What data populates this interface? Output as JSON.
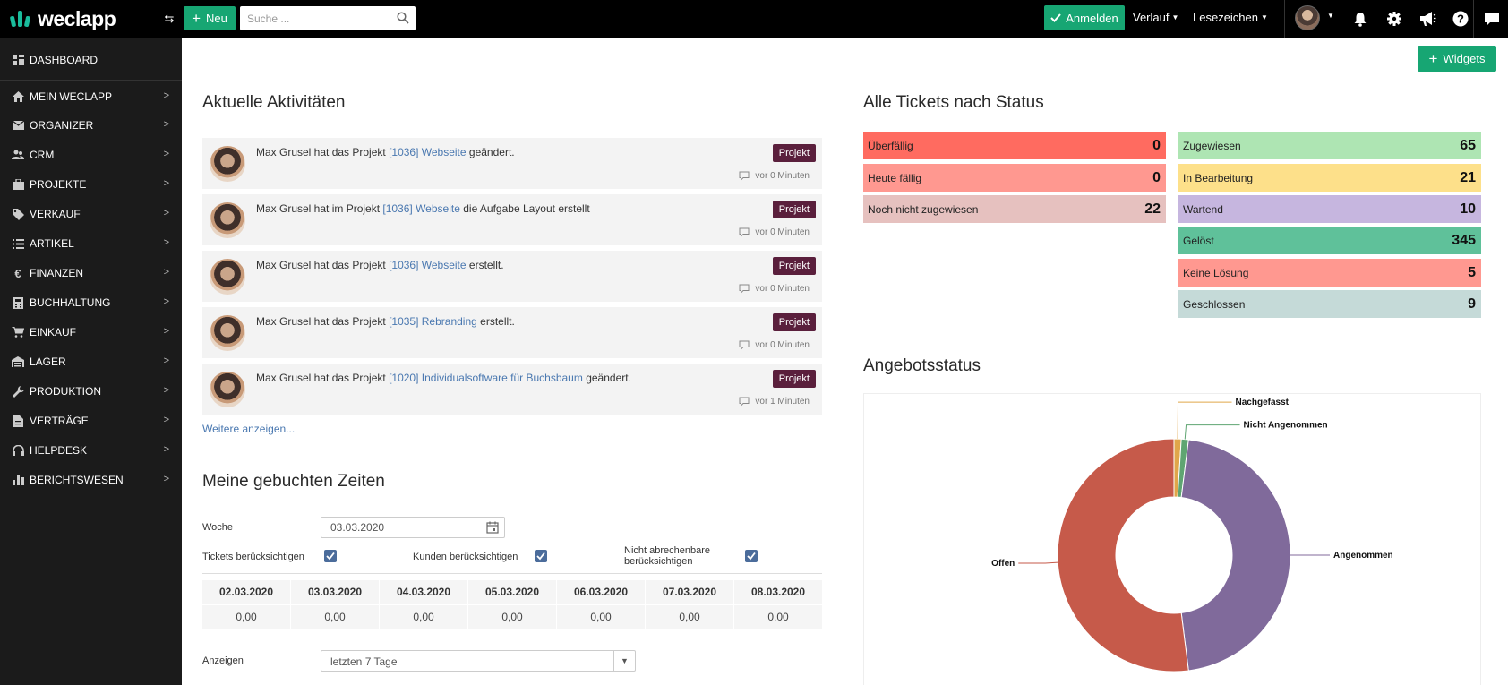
{
  "app": {
    "logo_text": "weclapp",
    "new_button": "Neu",
    "search_placeholder": "Suche ...",
    "login_button": "Anmelden",
    "history_menu": "Verlauf",
    "bookmarks_menu": "Lesezeichen",
    "collapse_symbol": "⇆",
    "accent_color": "#17a673"
  },
  "sidebar": {
    "dashboard": "DASHBOARD",
    "items": [
      {
        "label": "MEIN WECLAPP",
        "icon": "home-icon"
      },
      {
        "label": "ORGANIZER",
        "icon": "envelope-icon"
      },
      {
        "label": "CRM",
        "icon": "users-icon"
      },
      {
        "label": "PROJEKTE",
        "icon": "briefcase-icon"
      },
      {
        "label": "VERKAUF",
        "icon": "tag-icon"
      },
      {
        "label": "ARTIKEL",
        "icon": "list-icon"
      },
      {
        "label": "FINANZEN",
        "icon": "euro-icon"
      },
      {
        "label": "BUCHHALTUNG",
        "icon": "calculator-icon"
      },
      {
        "label": "EINKAUF",
        "icon": "cart-icon"
      },
      {
        "label": "LAGER",
        "icon": "warehouse-icon"
      },
      {
        "label": "PRODUKTION",
        "icon": "wrench-icon"
      },
      {
        "label": "VERTRÄGE",
        "icon": "document-icon"
      },
      {
        "label": "HELPDESK",
        "icon": "headset-icon"
      },
      {
        "label": "BERICHTSWESEN",
        "icon": "bar-chart-icon"
      }
    ]
  },
  "main": {
    "widgets_button": "Widgets",
    "activities": {
      "title": "Aktuelle Aktivitäten",
      "badge": "Projekt",
      "more_link": "Weitere anzeigen...",
      "items": [
        {
          "before": "Max Grusel hat das Projekt ",
          "link": "[1036] Webseite",
          "after": " geändert.",
          "time": "vor 0 Minuten"
        },
        {
          "before": "Max Grusel hat im Projekt ",
          "link": "[1036] Webseite",
          "after": " die Aufgabe Layout erstellt",
          "time": "vor 0 Minuten"
        },
        {
          "before": "Max Grusel hat das Projekt ",
          "link": "[1036] Webseite",
          "after": " erstellt.",
          "time": "vor 0 Minuten"
        },
        {
          "before": "Max Grusel hat das Projekt ",
          "link": "[1035] Rebranding",
          "after": " erstellt.",
          "time": "vor 0 Minuten"
        },
        {
          "before": "Max Grusel hat das Projekt ",
          "link": "[1020] Individualsoftware für Buchsbaum",
          "after": " geändert.",
          "time": "vor 1 Minuten"
        }
      ]
    },
    "times": {
      "title": "Meine gebuchten Zeiten",
      "week_label": "Woche",
      "week_value": "03.03.2020",
      "tickets_label": "Tickets berücksichtigen",
      "customers_label": "Kunden berücksichtigen",
      "nonbillable_label_1": "Nicht abrechenbare",
      "nonbillable_label_2": "berücksichtigen",
      "days": [
        {
          "date": "02.03.2020",
          "value": "0,00"
        },
        {
          "date": "03.03.2020",
          "value": "0,00"
        },
        {
          "date": "04.03.2020",
          "value": "0,00"
        },
        {
          "date": "05.03.2020",
          "value": "0,00"
        },
        {
          "date": "06.03.2020",
          "value": "0,00"
        },
        {
          "date": "07.03.2020",
          "value": "0,00"
        },
        {
          "date": "08.03.2020",
          "value": "0,00"
        }
      ],
      "show_label": "Anzeigen",
      "show_value": "letzten 7 Tage"
    },
    "tickets": {
      "title": "Alle Tickets nach Status",
      "left": [
        {
          "label": "Überfällig",
          "count": "0",
          "color": "#ff6b60"
        },
        {
          "label": "Heute fällig",
          "count": "0",
          "color": "#ff9890"
        },
        {
          "label": "Noch nicht zugewiesen",
          "count": "22",
          "color": "#e6c1bf"
        }
      ],
      "right": [
        {
          "label": "Zugewiesen",
          "count": "65",
          "color": "#aee5b3"
        },
        {
          "label": "In Bearbeitung",
          "count": "21",
          "color": "#fde08a"
        },
        {
          "label": "Wartend",
          "count": "10",
          "color": "#c6b6df"
        },
        {
          "label": "Gelöst",
          "count": "345",
          "color": "#5fc19a"
        },
        {
          "label": "Keine Lösung",
          "count": "5",
          "color": "#ff9890"
        },
        {
          "label": "Geschlossen",
          "count": "9",
          "color": "#c5dad8"
        }
      ]
    },
    "offers": {
      "title": "Angebotsstatus"
    }
  },
  "chart_data": {
    "type": "pie",
    "donut": true,
    "categories": [
      "Nachgefasst",
      "Nicht Angenommen",
      "Angenommen",
      "Offen"
    ],
    "values": [
      1,
      1,
      46,
      52
    ],
    "colors": [
      "#e0a64a",
      "#5fa572",
      "#806a9b",
      "#c65a4a"
    ]
  }
}
